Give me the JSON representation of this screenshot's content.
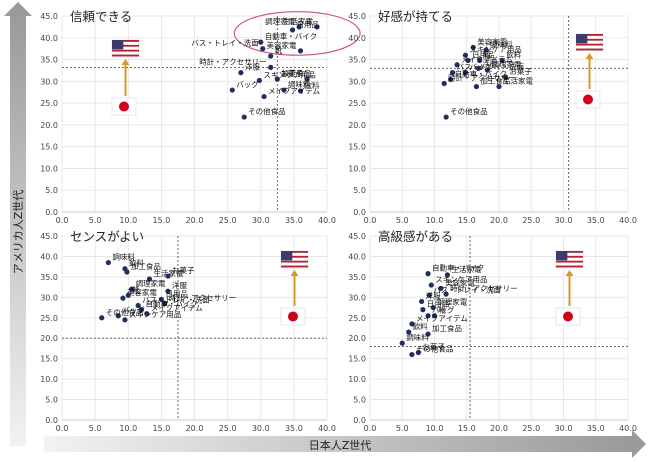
{
  "y_axis_title": "アメリカ人Z世代",
  "x_axis_title": "日本人Z世代",
  "chart_data": [
    {
      "type": "scatter",
      "title": "信頼できる",
      "xlim": [
        0,
        40
      ],
      "ylim": [
        0,
        45
      ],
      "xstep": 5,
      "ystep": 5,
      "ref_x": 32.5,
      "ref_y": 33.2,
      "highlight_ellipse": {
        "cx": 35.5,
        "cy": 41.0,
        "rx": 9.5,
        "ry": 5.0
      },
      "points": [
        {
          "label": "生活家電",
          "x": 38.5,
          "y": 42.5
        },
        {
          "label": "調理家電",
          "x": 35.8,
          "y": 42.5
        },
        {
          "label": "日用品",
          "x": 34.8,
          "y": 41.8
        },
        {
          "label": "美容家電",
          "x": 36.0,
          "y": 37.0
        },
        {
          "label": "自動車・バイク",
          "x": 30.0,
          "y": 39.0
        },
        {
          "label": "バス・トレイ・洗面",
          "x": 30.3,
          "y": 37.5
        },
        {
          "label": "靴",
          "x": 31.5,
          "y": 35.8
        },
        {
          "label": "時計・アクセサリー",
          "x": 31.5,
          "y": 33.2
        },
        {
          "label": "洋服",
          "x": 27.0,
          "y": 32.0
        },
        {
          "label": "スキンケア用品",
          "x": 29.8,
          "y": 30.2
        },
        {
          "label": "加工食品",
          "x": 32.5,
          "y": 30.5
        },
        {
          "label": "お菓子",
          "x": 37.0,
          "y": 30.5
        },
        {
          "label": "バッグ",
          "x": 25.7,
          "y": 28.0
        },
        {
          "label": "調味料",
          "x": 33.5,
          "y": 28.0
        },
        {
          "label": "飲料",
          "x": 36.0,
          "y": 27.8
        },
        {
          "label": "メイクアイテム",
          "x": 30.5,
          "y": 26.5
        },
        {
          "label": "その他食品",
          "x": 27.5,
          "y": 21.8
        }
      ]
    },
    {
      "type": "scatter",
      "title": "好感が持てる",
      "xlim": [
        0,
        40
      ],
      "ylim": [
        0,
        45
      ],
      "xstep": 5,
      "ystep": 5,
      "ref_x": 30.8,
      "ref_y": 33.0,
      "points": [
        {
          "label": "美容家電",
          "x": 16.0,
          "y": 37.8
        },
        {
          "label": "調味料",
          "x": 18.0,
          "y": 37.2
        },
        {
          "label": "スキンケア用品",
          "x": 14.8,
          "y": 36.0
        },
        {
          "label": "日用品",
          "x": 15.2,
          "y": 34.8
        },
        {
          "label": "靴",
          "x": 17.0,
          "y": 34.8
        },
        {
          "label": "飲料",
          "x": 20.5,
          "y": 34.8
        },
        {
          "label": "メイクアイテム",
          "x": 13.5,
          "y": 33.8
        },
        {
          "label": "洋服",
          "x": 16.8,
          "y": 33.0
        },
        {
          "label": "調理家電",
          "x": 18.2,
          "y": 32.6
        },
        {
          "label": "バス・トレイ・洗面",
          "x": 12.8,
          "y": 32.0
        },
        {
          "label": "バッグ",
          "x": 14.8,
          "y": 32.0
        },
        {
          "label": "自動車・バイク",
          "x": 12.5,
          "y": 30.4
        },
        {
          "label": "お菓子",
          "x": 21.0,
          "y": 31.0
        },
        {
          "label": "加工食品",
          "x": 16.5,
          "y": 28.8
        },
        {
          "label": "生活家電",
          "x": 20.0,
          "y": 28.8
        },
        {
          "label": "時計・アクセサリー",
          "x": 11.5,
          "y": 29.5
        },
        {
          "label": "その他食品",
          "x": 11.8,
          "y": 21.8
        }
      ]
    },
    {
      "type": "scatter",
      "title": "センスがよい",
      "xlim": [
        0,
        40
      ],
      "ylim": [
        0,
        45
      ],
      "xstep": 5,
      "ystep": 5,
      "ref_x": 17.5,
      "ref_y": 20.0,
      "points": [
        {
          "label": "調味料",
          "x": 7.0,
          "y": 38.5
        },
        {
          "label": "飲料",
          "x": 9.5,
          "y": 37.0
        },
        {
          "label": "加工食品",
          "x": 9.8,
          "y": 36.2
        },
        {
          "label": "生活家電",
          "x": 13.2,
          "y": 34.5
        },
        {
          "label": "お菓子",
          "x": 16.0,
          "y": 35.2
        },
        {
          "label": "調理家電",
          "x": 10.5,
          "y": 32.0
        },
        {
          "label": "美容家電",
          "x": 9.2,
          "y": 29.8
        },
        {
          "label": "靴",
          "x": 10.0,
          "y": 30.5
        },
        {
          "label": "洋服",
          "x": 16.0,
          "y": 31.5
        },
        {
          "label": "日用品",
          "x": 15.0,
          "y": 29.5
        },
        {
          "label": "時計・アクセサリー",
          "x": 15.5,
          "y": 28.5
        },
        {
          "label": "バス・トレイ・洗面",
          "x": 11.5,
          "y": 28.0
        },
        {
          "label": "自動車・バイク",
          "x": 12.0,
          "y": 27.0
        },
        {
          "label": "メイクアイテム",
          "x": 12.8,
          "y": 26.0
        },
        {
          "label": "バッグ",
          "x": 8.5,
          "y": 25.5
        },
        {
          "label": "スキンケア用品",
          "x": 9.5,
          "y": 24.5
        },
        {
          "label": "その他食品",
          "x": 6.0,
          "y": 25.0
        }
      ]
    },
    {
      "type": "scatter",
      "title": "高級感がある",
      "xlim": [
        0,
        40
      ],
      "ylim": [
        0,
        45
      ],
      "xstep": 5,
      "ystep": 5,
      "ref_x": 15.5,
      "ref_y": 18.0,
      "points": [
        {
          "label": "自動車・バイク",
          "x": 9.0,
          "y": 35.8
        },
        {
          "label": "生活家電",
          "x": 12.0,
          "y": 35.5
        },
        {
          "label": "スキンケア用品",
          "x": 9.5,
          "y": 33.0
        },
        {
          "label": "美容家電",
          "x": 11.0,
          "y": 32.2
        },
        {
          "label": "時計・アクセサリー",
          "x": 11.8,
          "y": 30.8
        },
        {
          "label": "バス・トレイ・洗面",
          "x": 9.2,
          "y": 30.5
        },
        {
          "label": "洋服",
          "x": 8.0,
          "y": 29.0
        },
        {
          "label": "調理家電",
          "x": 9.8,
          "y": 27.5
        },
        {
          "label": "日用品",
          "x": 8.2,
          "y": 27.0
        },
        {
          "label": "バッグ",
          "x": 9.0,
          "y": 25.5
        },
        {
          "label": "靴",
          "x": 10.0,
          "y": 25.5
        },
        {
          "label": "メイクアイテム",
          "x": 6.5,
          "y": 23.5
        },
        {
          "label": "飲料",
          "x": 6.0,
          "y": 21.5
        },
        {
          "label": "加工食品",
          "x": 9.0,
          "y": 21.0
        },
        {
          "label": "調味料",
          "x": 5.0,
          "y": 18.8
        },
        {
          "label": "お菓子",
          "x": 7.5,
          "y": 16.5
        },
        {
          "label": "その他食品",
          "x": 6.5,
          "y": 16.0
        }
      ]
    }
  ]
}
